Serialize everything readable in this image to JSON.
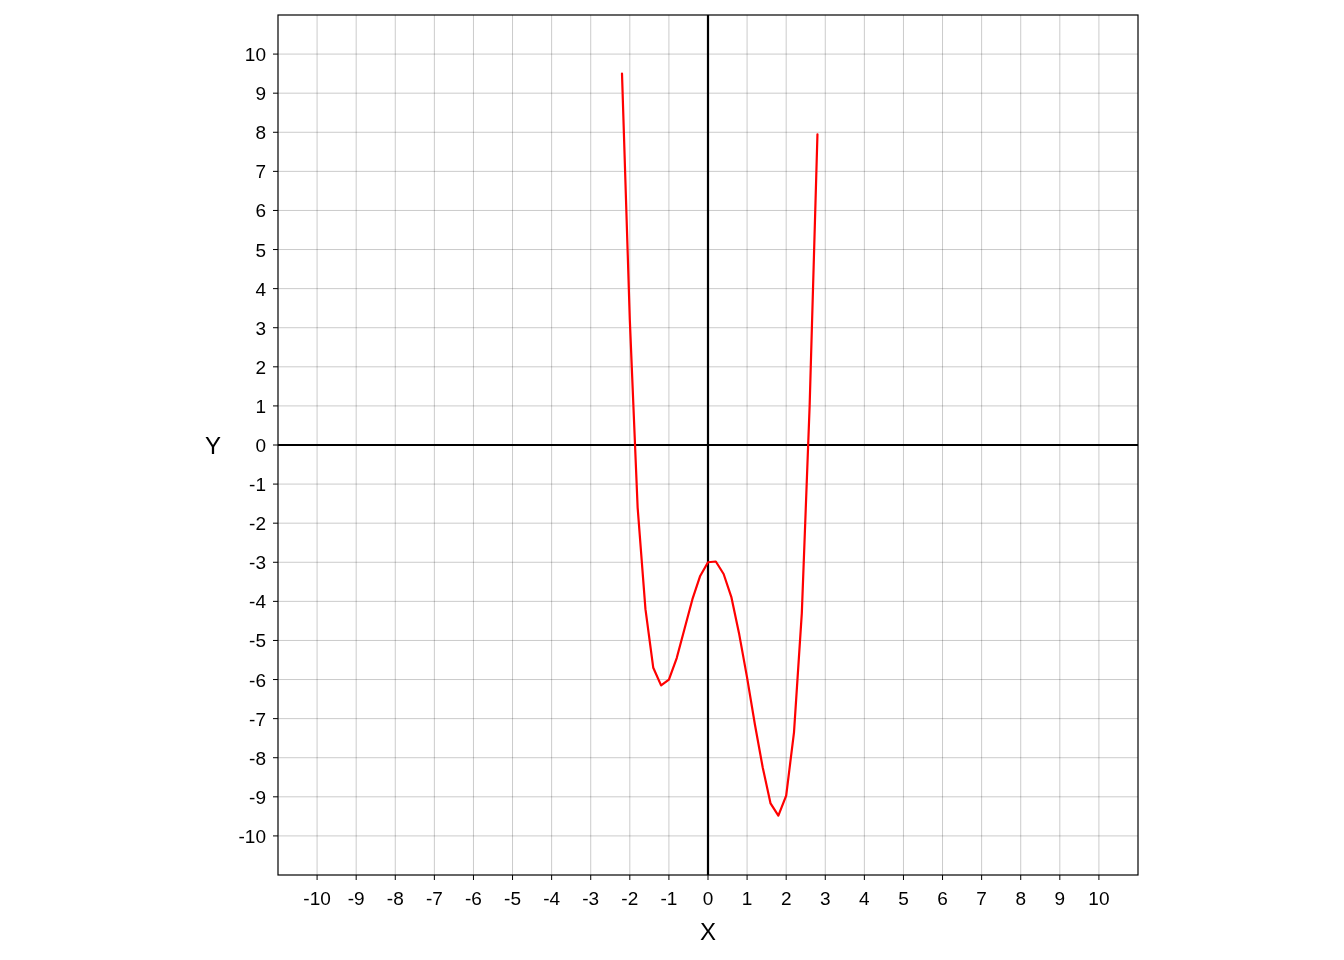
{
  "chart_data": {
    "type": "line",
    "xlabel": "X",
    "ylabel": "Y",
    "xlim": [
      -11,
      11
    ],
    "ylim": [
      -11,
      11
    ],
    "xticks": [
      -10,
      -9,
      -8,
      -7,
      -6,
      -5,
      -4,
      -3,
      -2,
      -1,
      0,
      1,
      2,
      3,
      4,
      5,
      6,
      7,
      8,
      9,
      10
    ],
    "yticks": [
      -10,
      -9,
      -8,
      -7,
      -6,
      -5,
      -4,
      -3,
      -2,
      -1,
      0,
      1,
      2,
      3,
      4,
      5,
      6,
      7,
      8,
      9,
      10
    ],
    "grid": true,
    "marker": "none",
    "line_style": "solid",
    "series": [
      {
        "color": "#ff0000",
        "x": [
          -2.2,
          -2.0,
          -1.8,
          -1.6,
          -1.4,
          -1.2,
          -1.0,
          -0.8,
          -0.6,
          -0.4,
          -0.2,
          0.0,
          0.2,
          0.4,
          0.6,
          0.8,
          1.0,
          1.2,
          1.4,
          1.6,
          1.8,
          2.0,
          2.2,
          2.4,
          2.6,
          2.8
        ],
        "values": [
          9.5,
          3.2,
          -1.6,
          -4.2,
          -5.7,
          -6.15,
          -6.0,
          -5.45,
          -4.7,
          -3.95,
          -3.35,
          -3.0,
          -2.98,
          -3.3,
          -3.9,
          -4.85,
          -5.95,
          -7.15,
          -8.25,
          -9.17,
          -9.48,
          -8.97,
          -7.35,
          -4.3,
          1.0,
          7.95
        ]
      }
    ]
  }
}
